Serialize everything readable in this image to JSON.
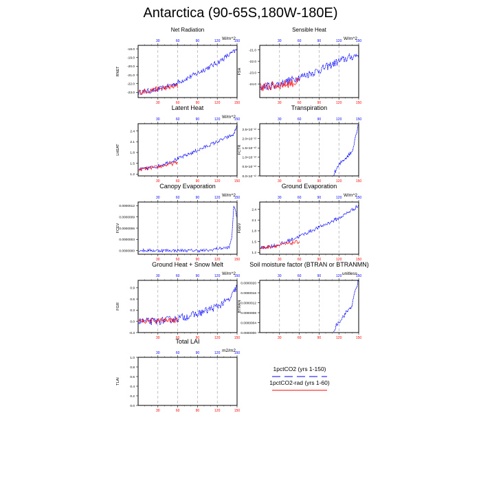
{
  "page": {
    "title": "Antarctica (90-65S,180W-180E)"
  },
  "colors": {
    "series_main": "#0000ff",
    "series_rad": "#ff0000",
    "top_ticks": "#0000ff",
    "bottom_ticks": "#ff0000",
    "grid": "#999999"
  },
  "legend": {
    "entries": [
      {
        "label": "1pctCO2 (yrs 1-150)",
        "color": "#0000ff",
        "style": "dashed"
      },
      {
        "label": "1pctCO2-rad (yrs 1-60)",
        "color": "#ff0000",
        "style": "solid"
      }
    ]
  },
  "chart_data": [
    {
      "type": "line",
      "title": "Net Radiation",
      "units": "W/m^2",
      "ylabel": "RNET",
      "xlim": [
        0,
        150
      ],
      "xticks": [
        30,
        60,
        90,
        120,
        150
      ],
      "ylim": [
        -23.6,
        -17.6
      ],
      "yticks": [
        "-18.0",
        "-19.0",
        "-20.0",
        "-21.0",
        "-22.0",
        "-23.0"
      ],
      "ytick_values": [
        -18,
        -19,
        -20,
        -21,
        -22,
        -23
      ],
      "grid": true,
      "series": [
        {
          "name": "1pctCO2 (yrs 1-150)",
          "x_range": [
            1,
            150
          ],
          "keypoints": [
            [
              1,
              -23.0
            ],
            [
              30,
              -22.7
            ],
            [
              60,
              -21.9
            ],
            [
              90,
              -20.8
            ],
            [
              120,
              -19.6
            ],
            [
              150,
              -18.1
            ]
          ],
          "noise": 0.3
        },
        {
          "name": "1pctCO2-rad (yrs 1-60)",
          "x_range": [
            1,
            60
          ],
          "keypoints": [
            [
              1,
              -23.0
            ],
            [
              30,
              -22.6
            ],
            [
              60,
              -22.3
            ]
          ],
          "noise": 0.3
        }
      ]
    },
    {
      "type": "line",
      "title": "Sensible Heat",
      "units": "W/m^2",
      "ylabel": "FSH",
      "xlim": [
        0,
        150
      ],
      "xticks": [
        30,
        60,
        90,
        120,
        150
      ],
      "ylim": [
        -25.2,
        -20.6
      ],
      "yticks": [
        "-21.0",
        "-22.0",
        "-23.0",
        "-24.0"
      ],
      "ytick_values": [
        -21,
        -22,
        -23,
        -24
      ],
      "grid": true,
      "series": [
        {
          "name": "1pctCO2 (yrs 1-150)",
          "x_range": [
            1,
            150
          ],
          "keypoints": [
            [
              1,
              -24.3
            ],
            [
              30,
              -24.0
            ],
            [
              60,
              -23.4
            ],
            [
              90,
              -22.8
            ],
            [
              120,
              -22.0
            ],
            [
              150,
              -21.4
            ]
          ],
          "noise": 0.35
        },
        {
          "name": "1pctCO2-rad (yrs 1-60)",
          "x_range": [
            1,
            60
          ],
          "keypoints": [
            [
              1,
              -24.3
            ],
            [
              30,
              -24.1
            ],
            [
              60,
              -23.8
            ]
          ],
          "noise": 0.4
        }
      ]
    },
    {
      "type": "line",
      "title": "Latent Heat",
      "units": "W/m^2",
      "ylabel": "LHEAT",
      "xlim": [
        0,
        150
      ],
      "xticks": [
        30,
        60,
        90,
        120,
        150
      ],
      "ylim": [
        1.15,
        2.6
      ],
      "yticks": [
        "2.4",
        "2.1",
        "1.8",
        "1.5",
        "1.2"
      ],
      "ytick_values": [
        2.4,
        2.1,
        1.8,
        1.5,
        1.2
      ],
      "grid": true,
      "series": [
        {
          "name": "1pctCO2 (yrs 1-150)",
          "x_range": [
            1,
            150
          ],
          "keypoints": [
            [
              1,
              1.32
            ],
            [
              30,
              1.42
            ],
            [
              60,
              1.62
            ],
            [
              90,
              1.86
            ],
            [
              120,
              2.1
            ],
            [
              145,
              2.3
            ],
            [
              150,
              2.55
            ]
          ],
          "noise": 0.05
        },
        {
          "name": "1pctCO2-rad (yrs 1-60)",
          "x_range": [
            1,
            60
          ],
          "keypoints": [
            [
              1,
              1.32
            ],
            [
              30,
              1.4
            ],
            [
              60,
              1.52
            ]
          ],
          "noise": 0.05
        }
      ]
    },
    {
      "type": "line",
      "title": "Transpiration",
      "units": "",
      "ylabel": "FCTR",
      "xlim": [
        0,
        150
      ],
      "xticks": [
        30,
        60,
        90,
        120,
        150
      ],
      "ylim": [
        0,
        2.8
      ],
      "yticks": [
        "2.5×10⁻¹²",
        "2.0×10⁻¹²",
        "1.5×10⁻¹²",
        "1.0×10⁻¹²",
        "0.5×10⁻¹²",
        "0.0×10⁻¹²"
      ],
      "ytick_values": [
        2.5,
        2.0,
        1.5,
        1.0,
        0.5,
        0.0
      ],
      "grid": true,
      "series": [
        {
          "name": "1pctCO2 (yrs 1-150)",
          "x_range": [
            112,
            150
          ],
          "keypoints": [
            [
              112,
              0.0
            ],
            [
              116,
              0.35
            ],
            [
              125,
              0.8
            ],
            [
              140,
              1.3
            ],
            [
              145,
              2.1
            ],
            [
              150,
              2.8
            ]
          ],
          "noise": 0.12
        }
      ]
    },
    {
      "type": "line",
      "title": "Canopy Evaporation",
      "units": "W/m^2",
      "ylabel": "FCEV",
      "xlim": [
        0,
        150
      ],
      "xticks": [
        30,
        60,
        90,
        120,
        150
      ],
      "ylim": [
        -1e-07,
        1.3e-06
      ],
      "yticks": [
        "0.0000012",
        "0.0000009",
        "0.0000006",
        "0.0000003",
        "0.0000000"
      ],
      "ytick_values": [
        1.2e-06,
        9e-07,
        6e-07,
        3e-07,
        0.0
      ],
      "grid": true,
      "series": [
        {
          "name": "1pctCO2 (yrs 1-150)",
          "x_range": [
            1,
            150
          ],
          "keypoints": [
            [
              1,
              0.0
            ],
            [
              110,
              0.0
            ],
            [
              115,
              4e-08
            ],
            [
              138,
              8e-08
            ],
            [
              142,
              3.5e-07
            ],
            [
              145,
              1.2e-06
            ],
            [
              150,
              9e-07
            ]
          ],
          "noise": 4e-08
        }
      ]
    },
    {
      "type": "line",
      "title": "Ground Evaporation",
      "units": "W/m^2",
      "ylabel": "FGEV",
      "xlim": [
        0,
        150
      ],
      "xticks": [
        30,
        60,
        90,
        120,
        150
      ],
      "ylim": [
        1.15,
        2.6
      ],
      "yticks": [
        "2.4",
        "2.1",
        "1.8",
        "1.5",
        "1.2"
      ],
      "ytick_values": [
        2.4,
        2.1,
        1.8,
        1.5,
        1.2
      ],
      "grid": true,
      "series": [
        {
          "name": "1pctCO2 (yrs 1-150)",
          "x_range": [
            1,
            150
          ],
          "keypoints": [
            [
              1,
              1.32
            ],
            [
              30,
              1.42
            ],
            [
              60,
              1.65
            ],
            [
              90,
              1.9
            ],
            [
              120,
              2.15
            ],
            [
              150,
              2.5
            ]
          ],
          "noise": 0.05
        },
        {
          "name": "1pctCO2-rad (yrs 1-60)",
          "x_range": [
            1,
            60
          ],
          "keypoints": [
            [
              1,
              1.32
            ],
            [
              30,
              1.4
            ],
            [
              60,
              1.5
            ]
          ],
          "noise": 0.05
        }
      ]
    },
    {
      "type": "line",
      "title": "Ground Heat + Snow Melt",
      "units": "W/m^2",
      "ylabel": "FGR",
      "xlim": [
        0,
        150
      ],
      "xticks": [
        30,
        60,
        90,
        120,
        150
      ],
      "ylim": [
        -0.3,
        1.1
      ],
      "yticks": [
        "0.9",
        "0.6",
        "0.3",
        "0.0",
        "-0.3"
      ],
      "ytick_values": [
        0.9,
        0.6,
        0.3,
        0.0,
        -0.3
      ],
      "grid": true,
      "series": [
        {
          "name": "1pctCO2 (yrs 1-150)",
          "x_range": [
            1,
            150
          ],
          "keypoints": [
            [
              1,
              0.0
            ],
            [
              30,
              0.0
            ],
            [
              60,
              0.08
            ],
            [
              90,
              0.2
            ],
            [
              120,
              0.4
            ],
            [
              140,
              0.6
            ],
            [
              150,
              0.95
            ]
          ],
          "noise": 0.1
        },
        {
          "name": "1pctCO2-rad (yrs 1-60)",
          "x_range": [
            1,
            60
          ],
          "keypoints": [
            [
              1,
              0.0
            ],
            [
              30,
              0.02
            ],
            [
              60,
              0.03
            ]
          ],
          "noise": 0.07
        }
      ]
    },
    {
      "type": "line",
      "title": "Soil moisture factor (BTRAN or BTRANMN)",
      "units": "unitless",
      "ylabel": "BTRAN",
      "xlim": [
        0,
        150
      ],
      "xticks": [
        30,
        60,
        90,
        120,
        150
      ],
      "ylim": [
        0,
        2.1e-06
      ],
      "yticks": [
        "0.0000020",
        "0.0000016",
        "0.0000012",
        "0.0000008",
        "0.0000004",
        "0.0000000"
      ],
      "ytick_values": [
        2e-06,
        1.6e-06,
        1.2e-06,
        8e-07,
        4e-07,
        0.0
      ],
      "grid": true,
      "series": [
        {
          "name": "1pctCO2 (yrs 1-150)",
          "x_range": [
            112,
            150
          ],
          "keypoints": [
            [
              112,
              0.0
            ],
            [
              116,
              3e-07
            ],
            [
              125,
              6e-07
            ],
            [
              140,
              1.1e-06
            ],
            [
              145,
              1.7e-06
            ],
            [
              150,
              2.1e-06
            ]
          ],
          "noise": 9e-08
        }
      ]
    },
    {
      "type": "line",
      "title": "Total LAI",
      "units": "m2/m2",
      "ylabel": "TLAI",
      "xlim": [
        0,
        150
      ],
      "xticks": [
        30,
        60,
        90,
        120,
        150
      ],
      "ylim": [
        0,
        1.0
      ],
      "yticks": [
        "1.0",
        "0.8",
        "0.6",
        "0.4",
        "0.2",
        "0.0"
      ],
      "ytick_values": [
        1.0,
        0.8,
        0.6,
        0.4,
        0.2,
        0.0
      ],
      "grid": true,
      "series": []
    }
  ]
}
